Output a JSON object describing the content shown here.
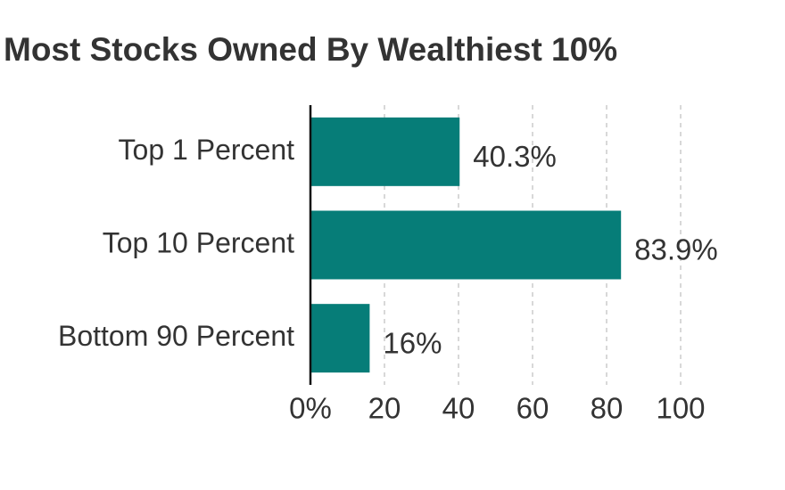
{
  "chart_data": {
    "type": "hbar",
    "title": "Most Stocks Owned By Wealthiest 10%",
    "categories": [
      "Top 1 Percent",
      "Top 10 Percent",
      "Bottom 90 Percent"
    ],
    "values": [
      40.3,
      83.9,
      16
    ],
    "value_labels": [
      "40.3%",
      "83.9%",
      "16%"
    ],
    "color": "#067d78",
    "xlim": [
      0,
      100
    ],
    "xticks": [
      {
        "value": 0,
        "label": "0%"
      },
      20,
      40,
      60,
      80,
      100
    ],
    "grid": true
  }
}
